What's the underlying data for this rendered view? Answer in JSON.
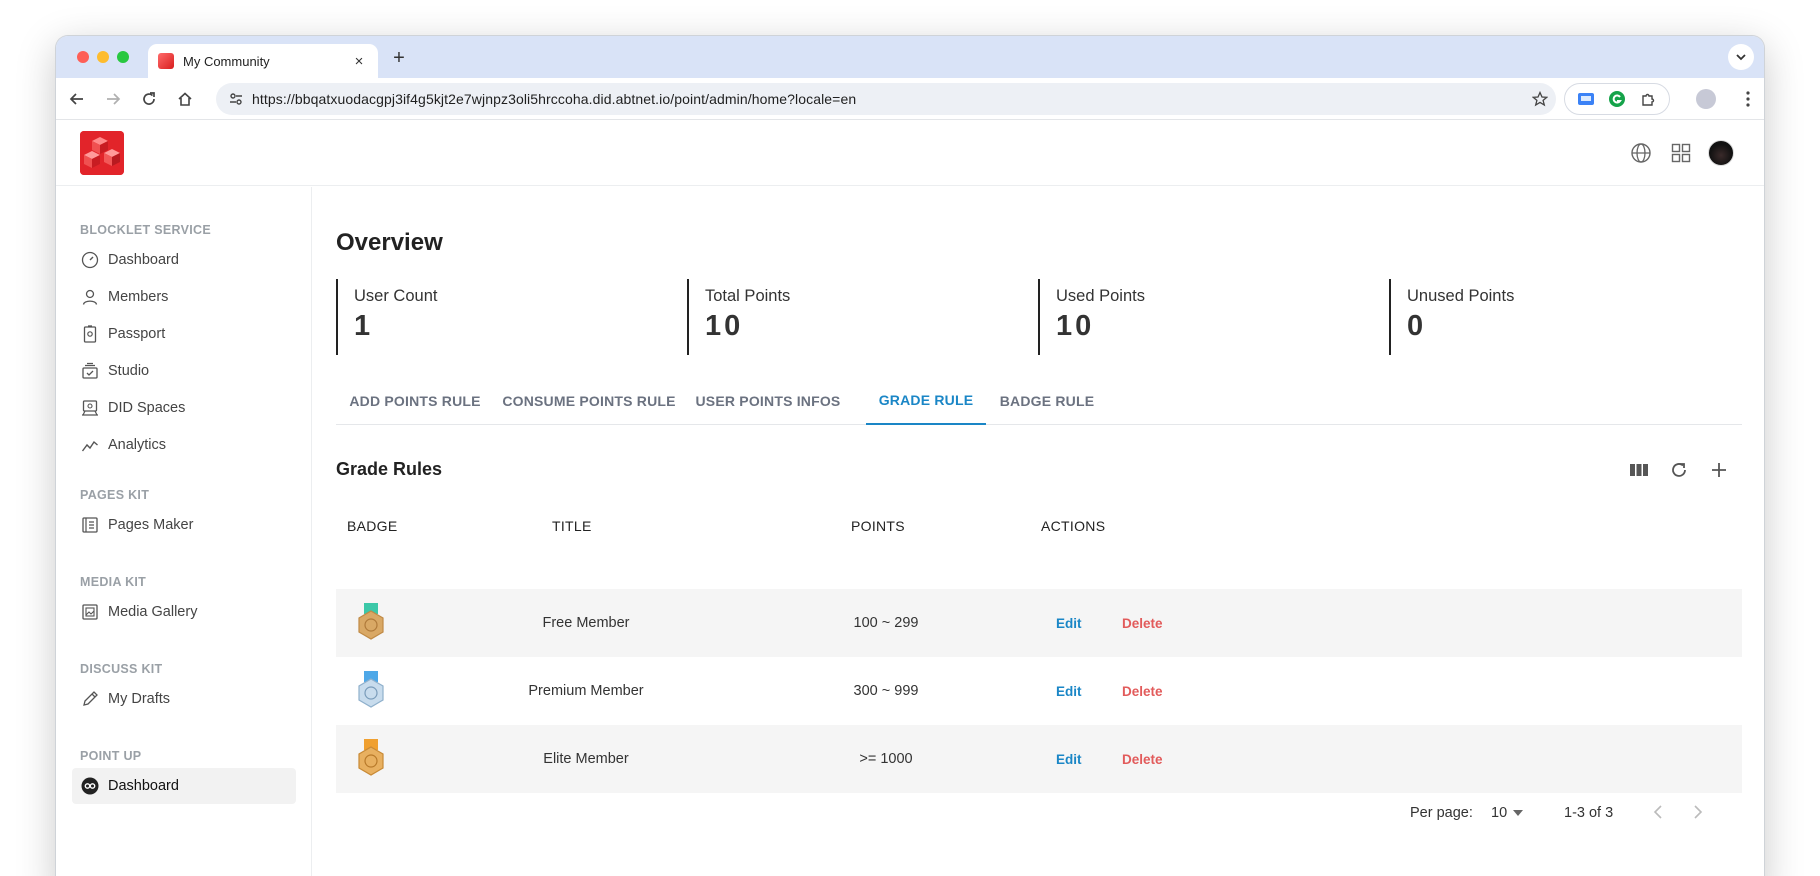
{
  "browser": {
    "tab_title": "My Community",
    "tab_close": "×",
    "new_tab": "+",
    "url": "https://bbqatxuodacgpj3if4g5kjt2e7wjnpz3oli5hrccoha.did.abtnet.io/point/admin/home?locale=en"
  },
  "sidebar": {
    "sections": [
      {
        "title": "BLOCKLET SERVICE"
      },
      {
        "title": "PAGES KIT"
      },
      {
        "title": "MEDIA KIT"
      },
      {
        "title": "DISCUSS KIT"
      },
      {
        "title": "POINT UP"
      }
    ],
    "items": [
      {
        "label": "Dashboard",
        "icon": "dashboard-gauge-icon"
      },
      {
        "label": "Members",
        "icon": "person-icon"
      },
      {
        "label": "Passport",
        "icon": "passport-icon"
      },
      {
        "label": "Studio",
        "icon": "studio-icon"
      },
      {
        "label": "DID Spaces",
        "icon": "did-spaces-icon"
      },
      {
        "label": "Analytics",
        "icon": "analytics-icon"
      },
      {
        "label": "Pages Maker",
        "icon": "pages-icon"
      },
      {
        "label": "Media Gallery",
        "icon": "gallery-icon"
      },
      {
        "label": "My Drafts",
        "icon": "draft-pen-icon"
      },
      {
        "label": "Dashboard",
        "icon": "point-up-logo-icon",
        "active": true
      }
    ]
  },
  "overview": {
    "title": "Overview",
    "stats": [
      {
        "label": "User Count",
        "value": "1"
      },
      {
        "label": "Total Points",
        "value": "10"
      },
      {
        "label": "Used Points",
        "value": "10"
      },
      {
        "label": "Unused Points",
        "value": "0"
      }
    ]
  },
  "tabs": [
    {
      "label": "ADD POINTS RULE"
    },
    {
      "label": "CONSUME POINTS RULE"
    },
    {
      "label": "USER POINTS INFOS"
    },
    {
      "label": "GRADE RULE",
      "active": true
    },
    {
      "label": "BADGE RULE"
    }
  ],
  "grade_rules": {
    "title": "Grade Rules",
    "columns": [
      "BADGE",
      "TITLE",
      "POINTS",
      "ACTIONS"
    ],
    "rows": [
      {
        "title": "Free Member",
        "points": "100 ~ 299",
        "edit": "Edit",
        "delete": "Delete",
        "ribbon": "#3cc8a8",
        "medal": "#d9a865"
      },
      {
        "title": "Premium Member",
        "points": "300 ~ 999",
        "edit": "Edit",
        "delete": "Delete",
        "ribbon": "#4ea8e8",
        "medal": "#a9c6de"
      },
      {
        "title": "Elite Member",
        "points": ">= 1000",
        "edit": "Edit",
        "delete": "Delete",
        "ribbon": "#f0a030",
        "medal": "#e8b060"
      }
    ]
  },
  "pagination": {
    "per_page_label": "Per page:",
    "per_page_value": "10",
    "range": "1-3 of 3"
  },
  "colors": {
    "accent": "#1a86c6",
    "danger": "#e25b5b",
    "brand": "#e2242a"
  }
}
